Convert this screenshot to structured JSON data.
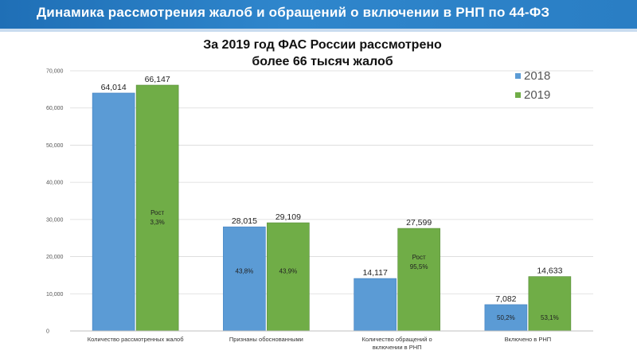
{
  "header": {
    "title": "Динамика рассмотрения жалоб и обращений о включении в РНП по 44-ФЗ"
  },
  "colors": {
    "header_bg": "#2a7ec4",
    "series_2018": "#5b9bd5",
    "series_2019": "#70ad47"
  },
  "chart_data": {
    "type": "bar",
    "title": "За 2019 год ФАС России рассмотрено более 66 тысяч жалоб",
    "title_lines": [
      "За 2019 год ФАС России рассмотрено",
      "более 66 тысяч жалоб"
    ],
    "xlabel": "",
    "ylabel": "",
    "ylim": [
      0,
      70000
    ],
    "yticks": [
      0,
      10000,
      20000,
      30000,
      40000,
      50000,
      60000,
      70000
    ],
    "ytick_labels": [
      "0",
      "10,000",
      "20,000",
      "30,000",
      "40,000",
      "50,000",
      "60,000",
      "70,000"
    ],
    "grid": true,
    "legend_position": "top-right",
    "categories": [
      "Количество рассмотренных жалоб",
      "Признаны обоснованными",
      "Количество обращений о включении в РНП",
      "Включено в РНП"
    ],
    "category_label_lines": [
      [
        "Количество рассмотренных жалоб"
      ],
      [
        "Признаны обоснованными"
      ],
      [
        "Количество обращений о",
        "включении в РНП"
      ],
      [
        "Включено в РНП"
      ]
    ],
    "series": [
      {
        "name": "2018",
        "values": [
          64014,
          28015,
          14117,
          7082
        ],
        "value_labels": [
          "64,014",
          "28,015",
          "14,117",
          "7,082"
        ],
        "inner_labels": [
          [],
          [
            "43,8%"
          ],
          [],
          [
            "50,2%"
          ]
        ]
      },
      {
        "name": "2019",
        "values": [
          66147,
          29109,
          27599,
          14633
        ],
        "value_labels": [
          "66,147",
          "29,109",
          "27,599",
          "14,633"
        ],
        "inner_labels": [
          [
            "Рост",
            "3,3%"
          ],
          [
            "43,9%"
          ],
          [
            "Рост",
            "95,5%"
          ],
          [
            "53,1%"
          ]
        ]
      }
    ]
  }
}
